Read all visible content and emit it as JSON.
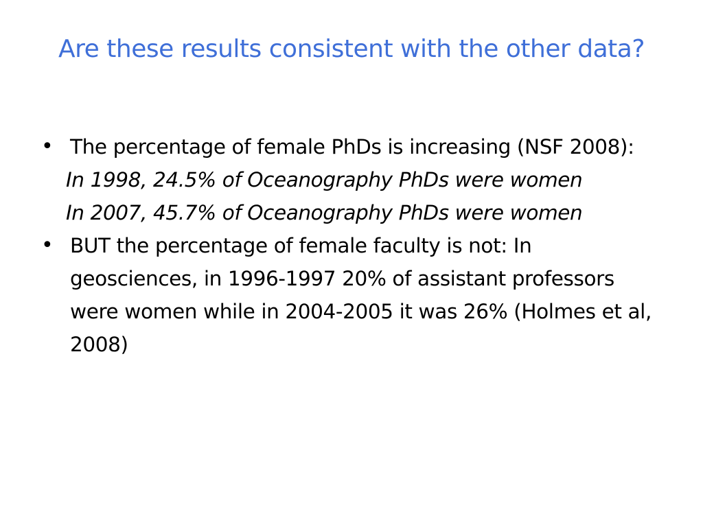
{
  "slide": {
    "title": "Are these results consistent with the other data?",
    "bullets": [
      {
        "marker": "•",
        "text": "The percentage of female PhDs is increasing (NSF 2008):"
      },
      {
        "marker": "•",
        "text": "BUT the percentage of female faculty is not:  In geosciences,  in 1996-1997 20% of assistant professors were women while in 2004-2005 it was 26% (Holmes et al, 2008)"
      }
    ],
    "sub_items": [
      "In 1998, 24.5% of Oceanography PhDs were women",
      "In 2007, 45.7% of Oceanography PhDs were women"
    ]
  }
}
